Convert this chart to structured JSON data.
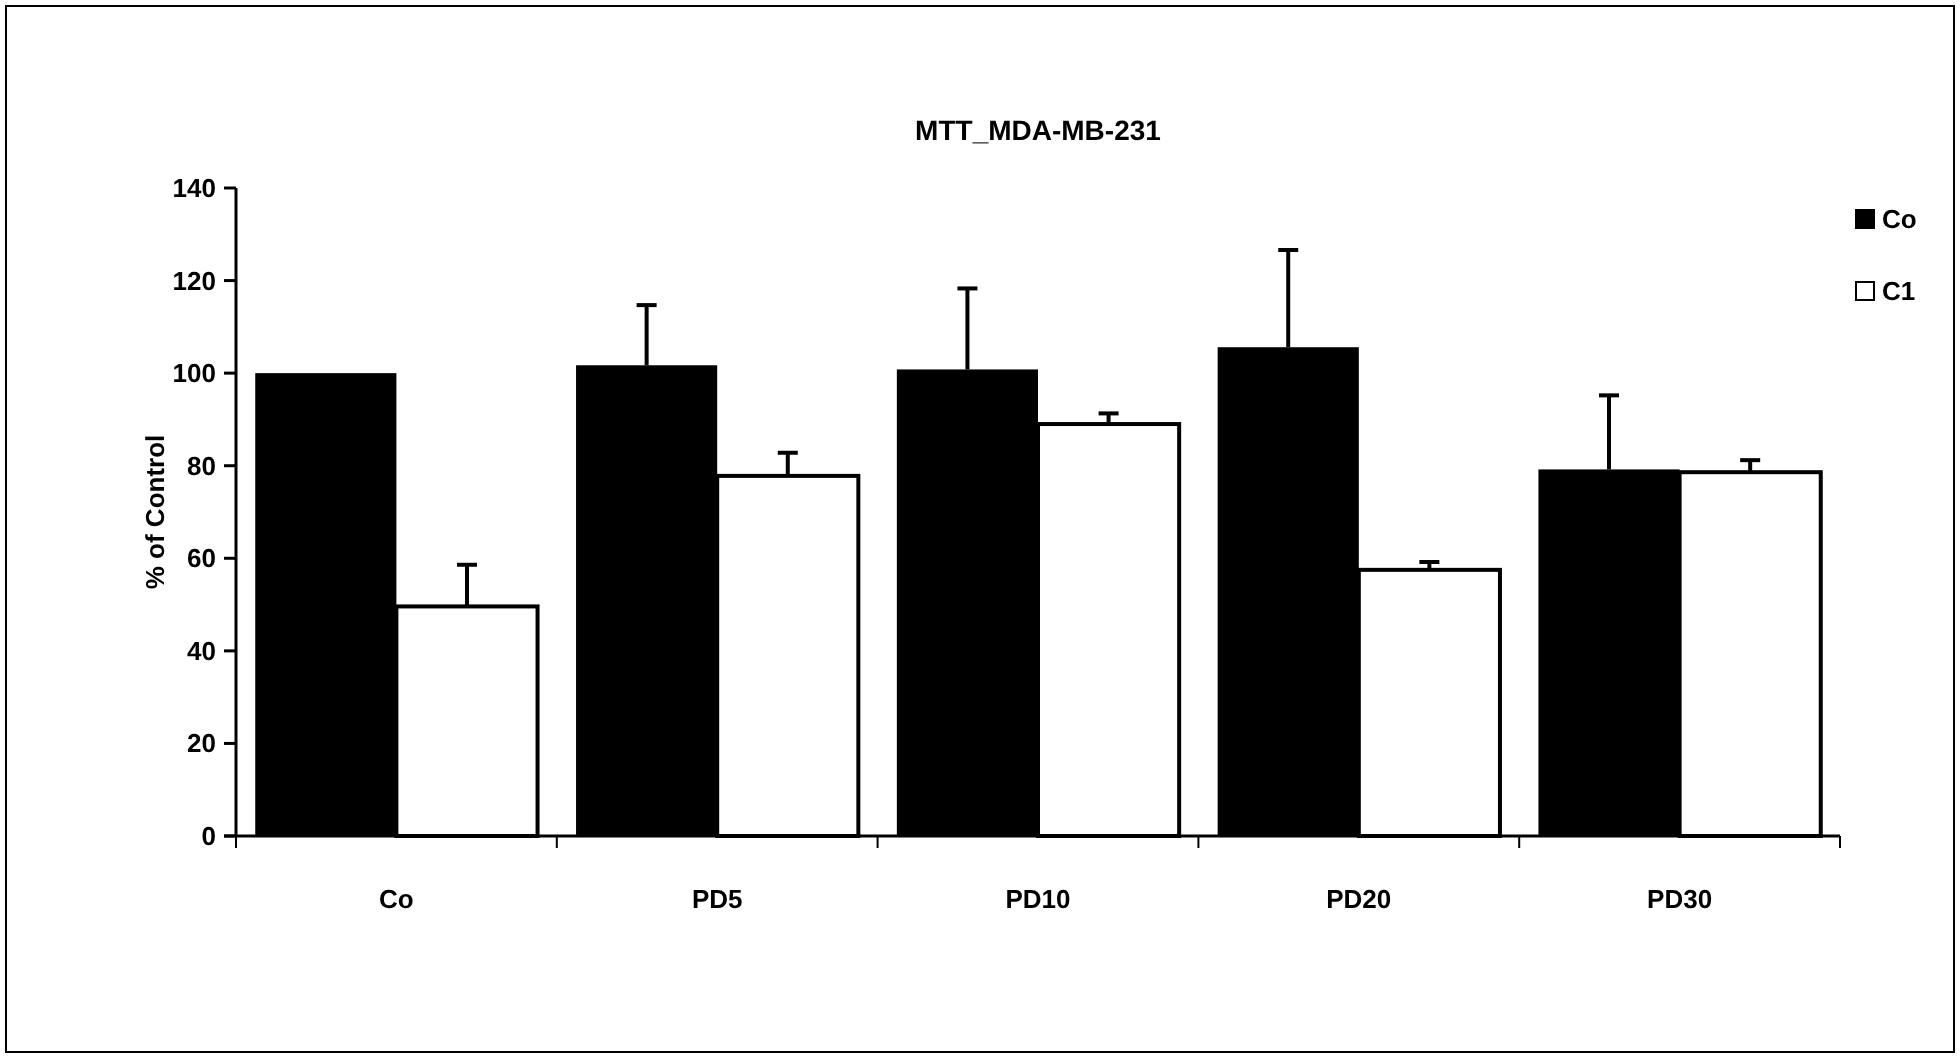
{
  "chart_data": {
    "type": "bar",
    "title": "MTT_MDA-MB-231",
    "ylabel": "% of Control",
    "categories": [
      "Co",
      "PD5",
      "PD10",
      "PD20",
      "PD30"
    ],
    "series": [
      {
        "name": "Co",
        "color": "#000000",
        "values": [
          100,
          101.7,
          100.8,
          105.6,
          79.2
        ],
        "errors": [
          null,
          13,
          17.5,
          21,
          16
        ]
      },
      {
        "name": "C1",
        "color": "#ffffff",
        "values": [
          49.6,
          77.8,
          89,
          57.5,
          78.6
        ],
        "errors": [
          9,
          5,
          2.3,
          1.7,
          2.6
        ]
      }
    ],
    "ylim": [
      0,
      140
    ],
    "yticks": [
      0,
      20,
      40,
      60,
      80,
      100,
      120,
      140
    ],
    "grid": false,
    "legend": "top right"
  }
}
